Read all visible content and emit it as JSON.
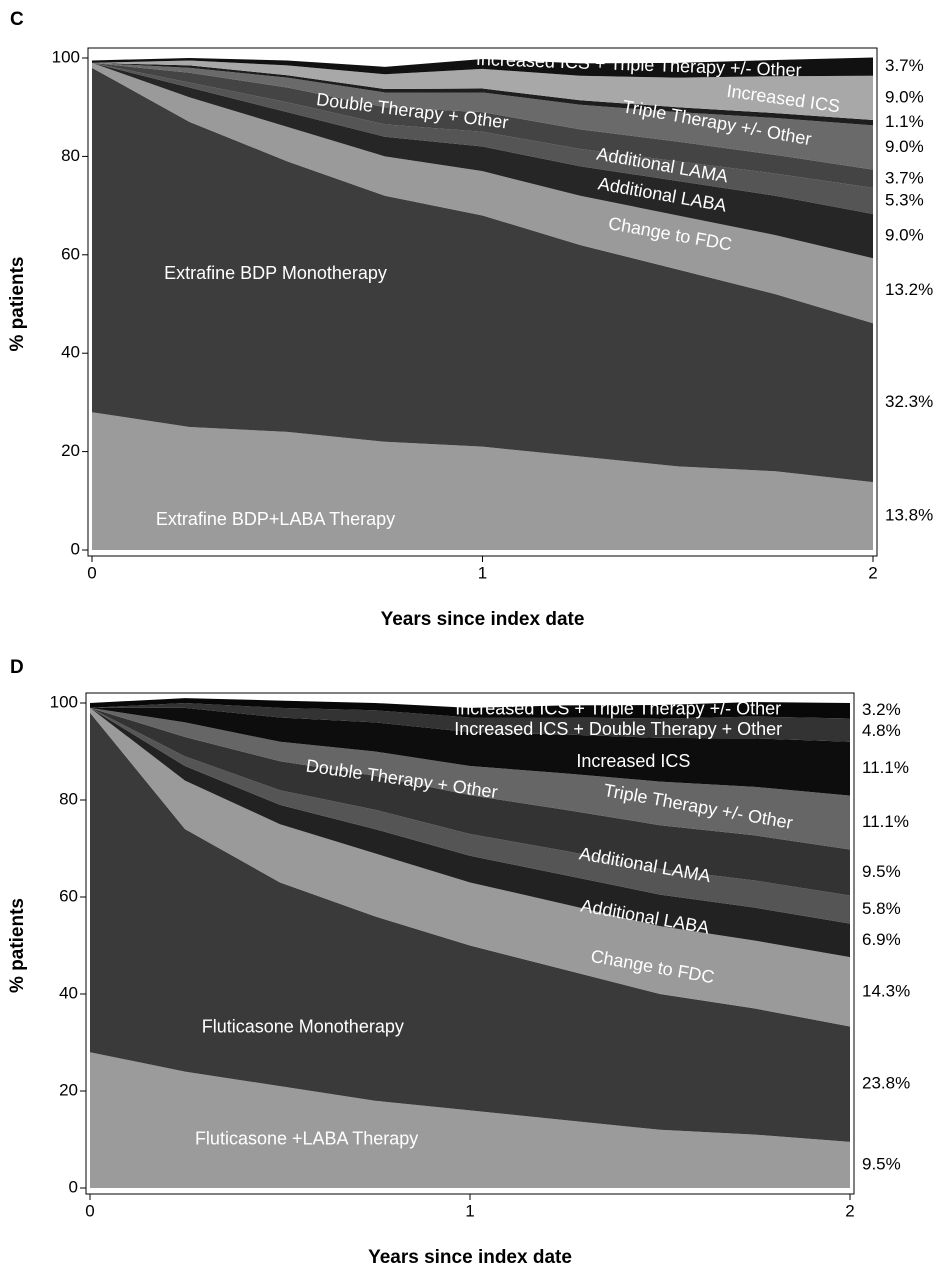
{
  "chart_data": [
    {
      "type": "stacked_area",
      "panel": "C",
      "xlabel": "Years since index date",
      "ylabel": "% patients",
      "x": [
        0,
        0.25,
        0.5,
        0.75,
        1,
        1.25,
        1.5,
        1.75,
        2
      ],
      "xlim": [
        0,
        2
      ],
      "xticks": [
        0,
        1,
        2
      ],
      "ylim": [
        0,
        100
      ],
      "yticks": [
        0,
        20,
        40,
        60,
        80,
        100
      ],
      "series": [
        {
          "name": "Extrafine BDP+LABA Therapy",
          "color": "#9b9b9b",
          "values": [
            28,
            25,
            24,
            22,
            21,
            19,
            17,
            16,
            13.8
          ],
          "value_labels": [
            null,
            null,
            null,
            null,
            null,
            null,
            null,
            null,
            "13.8%"
          ]
        },
        {
          "name": "Extrafine BDP Monotherapy",
          "color": "#3d3d3d",
          "values": [
            70,
            62,
            55,
            50,
            47,
            43,
            40,
            36,
            32.3
          ],
          "value_labels": [
            null,
            null,
            null,
            null,
            null,
            null,
            null,
            null,
            "32.3%"
          ]
        },
        {
          "name": "Change to FDC",
          "color": "#9a9a9a",
          "values": [
            1,
            5,
            7,
            8,
            9,
            10,
            11,
            12,
            13.2
          ],
          "value_labels": [
            null,
            null,
            null,
            null,
            null,
            null,
            null,
            null,
            "13.2%"
          ]
        },
        {
          "name": "Additional LABA",
          "color": "#262626",
          "values": [
            0,
            2,
            3,
            4,
            5,
            6,
            7,
            8,
            9.0
          ],
          "value_labels": [
            null,
            null,
            null,
            null,
            null,
            null,
            null,
            null,
            "9.0%"
          ]
        },
        {
          "name": "Additional LAMA",
          "color": "#555555",
          "values": [
            0,
            1,
            2,
            2.5,
            3,
            3.5,
            4,
            4.5,
            5.3
          ],
          "value_labels": [
            null,
            null,
            null,
            null,
            null,
            null,
            null,
            null,
            "5.3%"
          ]
        },
        {
          "name": "Double Therapy + Other",
          "color": "#444444",
          "values": [
            0,
            2,
            3,
            3.5,
            4,
            4,
            4,
            3.8,
            3.7
          ],
          "value_labels": [
            null,
            null,
            null,
            null,
            null,
            null,
            null,
            null,
            "3.7%"
          ]
        },
        {
          "name": "Triple Therapy +/- Other",
          "color": "#6a6a6a",
          "values": [
            0,
            1,
            2,
            3,
            4,
            5,
            6,
            7.5,
            9.0
          ],
          "value_labels": [
            null,
            null,
            null,
            null,
            null,
            null,
            null,
            null,
            "9.0%"
          ]
        },
        {
          "name": "Increased ICS",
          "color": "#1e1e1e",
          "values": [
            0,
            0.5,
            0.5,
            0.7,
            0.8,
            0.9,
            1,
            1,
            1.1
          ],
          "value_labels": [
            null,
            null,
            null,
            null,
            null,
            null,
            null,
            null,
            "1.1%"
          ]
        },
        {
          "color": "#a8a8a8",
          "values": [
            0,
            1,
            2,
            3,
            4,
            5,
            6,
            7.5,
            9.0
          ],
          "value_labels": [
            null,
            null,
            null,
            null,
            null,
            null,
            null,
            null,
            "9.0%"
          ]
        },
        {
          "name": "Increased ICS + Triple Therapy +/- Other",
          "color": "#111111",
          "values": [
            0.5,
            0.5,
            1,
            1.5,
            2,
            2.5,
            3,
            3.3,
            3.7
          ],
          "value_labels": [
            null,
            null,
            null,
            null,
            null,
            null,
            null,
            null,
            "3.7%"
          ]
        }
      ]
    },
    {
      "type": "stacked_area",
      "panel": "D",
      "xlabel": "Years since index date",
      "ylabel": "% patients",
      "x": [
        0,
        0.25,
        0.5,
        0.75,
        1,
        1.25,
        1.5,
        1.75,
        2
      ],
      "xlim": [
        0,
        2
      ],
      "xticks": [
        0,
        1,
        2
      ],
      "ylim": [
        0,
        100
      ],
      "yticks": [
        0,
        20,
        40,
        60,
        80,
        100
      ],
      "series": [
        {
          "name": "Fluticasone +LABA Therapy",
          "color": "#9b9b9b",
          "values": [
            28,
            24,
            21,
            18,
            16,
            14,
            12,
            11,
            9.5
          ],
          "value_labels": [
            null,
            null,
            null,
            null,
            null,
            null,
            null,
            null,
            "9.5%"
          ]
        },
        {
          "name": "Fluticasone Monotherapy",
          "color": "#3a3a3a",
          "values": [
            70,
            50,
            42,
            38,
            34,
            31,
            28,
            26,
            23.8
          ],
          "value_labels": [
            null,
            null,
            null,
            null,
            null,
            null,
            null,
            null,
            "23.8%"
          ]
        },
        {
          "name": "Change to FDC",
          "color": "#9a9a9a",
          "values": [
            1,
            10,
            12,
            13,
            13,
            13.5,
            14,
            14,
            14.3
          ],
          "value_labels": [
            null,
            null,
            null,
            null,
            null,
            null,
            null,
            null,
            "14.3%"
          ]
        },
        {
          "name": "Additional LABA",
          "color": "#222222",
          "values": [
            0,
            3,
            4,
            5,
            5.5,
            6,
            6.5,
            6.8,
            6.9
          ],
          "value_labels": [
            null,
            null,
            null,
            null,
            null,
            null,
            null,
            null,
            "6.9%"
          ]
        },
        {
          "name": "Additional LAMA",
          "color": "#555555",
          "values": [
            0,
            2,
            3,
            4,
            4.5,
            5,
            5.3,
            5.6,
            5.8
          ],
          "value_labels": [
            null,
            null,
            null,
            null,
            null,
            null,
            null,
            null,
            "5.8%"
          ]
        },
        {
          "name": "Double Therapy + Other",
          "color": "#333333",
          "values": [
            0,
            4,
            6,
            7,
            8,
            8.5,
            9,
            9.3,
            9.5
          ],
          "value_labels": [
            null,
            null,
            null,
            null,
            null,
            null,
            null,
            null,
            "9.5%"
          ]
        },
        {
          "name": "Triple Therapy +/- Other",
          "color": "#666666",
          "values": [
            0,
            3,
            4,
            5,
            6,
            7.5,
            9,
            10,
            11.1
          ],
          "value_labels": [
            null,
            null,
            null,
            null,
            null,
            null,
            null,
            null,
            "11.1%"
          ]
        },
        {
          "name": "Increased ICS",
          "color": "#0d0d0d",
          "values": [
            0,
            3,
            5,
            6,
            7,
            8,
            9,
            10,
            11.1
          ],
          "value_labels": [
            null,
            null,
            null,
            null,
            null,
            null,
            null,
            null,
            "11.1%"
          ]
        },
        {
          "name": "Increased ICS + Double Therapy + Other",
          "color": "#333333",
          "values": [
            0,
            1,
            2,
            2.5,
            3,
            3.5,
            4,
            4.5,
            4.8
          ],
          "value_labels": [
            null,
            null,
            null,
            null,
            null,
            null,
            null,
            null,
            "4.8%"
          ]
        },
        {
          "name": "Increased ICS + Triple Therapy +/- Other",
          "color": "#080808",
          "values": [
            1,
            1,
            1.5,
            1.5,
            2,
            2.5,
            2.8,
            3,
            3.2
          ],
          "value_labels": [
            null,
            null,
            null,
            null,
            null,
            null,
            null,
            null,
            "3.2%"
          ]
        }
      ]
    }
  ]
}
